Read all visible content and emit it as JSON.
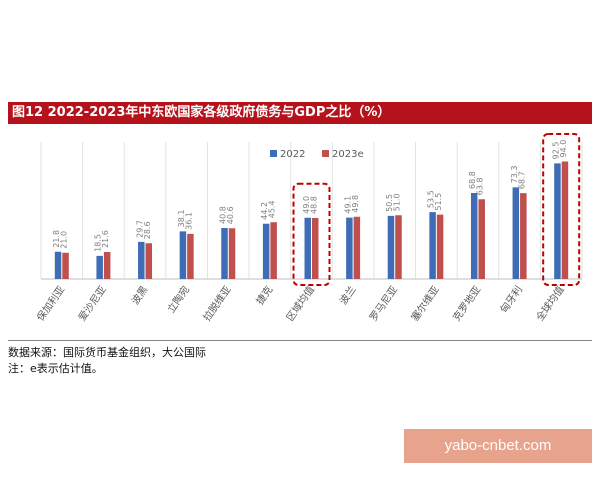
{
  "chart_data": {
    "type": "bar",
    "title": "图12   2022-2023年中东欧国家各级政府债务与GDP之比（%）",
    "categories": [
      "保加利亚",
      "爱沙尼亚",
      "波黑",
      "立陶宛",
      "拉脱维亚",
      "捷克",
      "区域均值",
      "波兰",
      "罗马尼亚",
      "塞尔维亚",
      "克罗地亚",
      "匈牙利",
      "全球均值"
    ],
    "series": [
      {
        "name": "2022",
        "color": "#3e6db5",
        "values": [
          21.8,
          18.5,
          29.7,
          38.1,
          40.8,
          44.2,
          49.0,
          49.1,
          50.5,
          53.5,
          68.8,
          73.3,
          92.5
        ]
      },
      {
        "name": "2023e",
        "color": "#c0504d",
        "values": [
          21.0,
          21.6,
          28.6,
          36.1,
          40.6,
          45.4,
          48.8,
          49.8,
          51.0,
          51.5,
          63.8,
          68.7,
          94.0
        ]
      }
    ],
    "ylim": [
      0,
      100
    ],
    "grid": true,
    "legend": "top-center",
    "highlighted": [
      "区域均值",
      "全球均值"
    ]
  },
  "notes": {
    "source": "数据来源：国际货币基金组织，大公国际",
    "note": "注：e表示估计值。"
  },
  "watermark": "yabo-cnbet.com"
}
